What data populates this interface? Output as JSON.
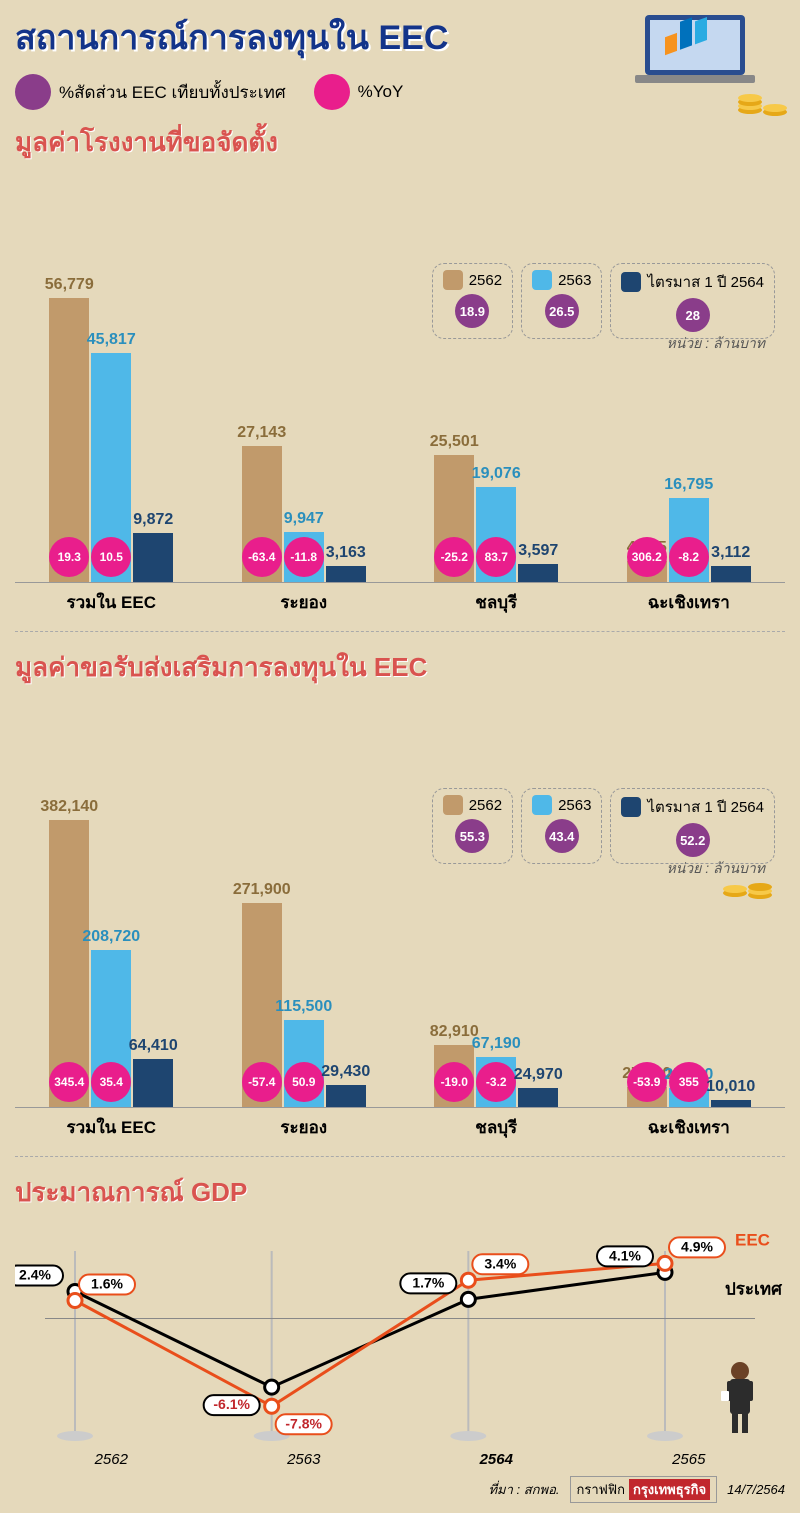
{
  "colors": {
    "bg": "#e5d9bb",
    "title": "#13348a",
    "section": "#d9534f",
    "purple": "#8a3d8a",
    "magenta": "#e91e8c",
    "bar2562": "#c19a6b",
    "bar2563": "#4fb8e8",
    "bar2564": "#1e4570",
    "eec_line": "#e94e1b",
    "country_line": "#000000"
  },
  "main_title": "สถานการณ์การลงทุนใน EEC",
  "legend_top": {
    "purple_label": "%สัดส่วน EEC เทียบทั้งประเทศ",
    "magenta_label": "%YoY"
  },
  "unit_label": "หน่วย : ล้านบาท",
  "year_legend": [
    {
      "swatch": "#c19a6b",
      "label": "2562"
    },
    {
      "swatch": "#4fb8e8",
      "label": "2563"
    },
    {
      "swatch": "#1e4570",
      "label": "ไตรมาส 1 ปี 2564"
    }
  ],
  "chart1": {
    "title": "มูลค่าโรงงานที่ขอจัดตั้ง",
    "ymax": 60000,
    "purple_badges": [
      "18.9",
      "26.5",
      "28"
    ],
    "categories": [
      "รวมใน EEC",
      "ระยอง",
      "ชลบุรี",
      "ฉะเชิงเทรา"
    ],
    "groups": [
      {
        "vals": [
          56779,
          45817,
          9872
        ],
        "labels": [
          "56,779",
          "45,817",
          "9,872"
        ],
        "yoy": [
          "19.3",
          "10.5",
          null
        ],
        "lcolors": [
          "#8a6d3b",
          "#2a8fbd",
          "#1e4570"
        ]
      },
      {
        "vals": [
          27143,
          9947,
          3163
        ],
        "labels": [
          "27,143",
          "9,947",
          "3,163"
        ],
        "yoy": [
          "-63.4",
          "-11.8",
          null
        ],
        "lcolors": [
          "#8a6d3b",
          "#2a8fbd",
          "#1e4570"
        ]
      },
      {
        "vals": [
          25501,
          19076,
          3597
        ],
        "labels": [
          "25,501",
          "19,076",
          "3,597"
        ],
        "yoy": [
          "-25.2",
          "83.7",
          null
        ],
        "lcolors": [
          "#8a6d3b",
          "#2a8fbd",
          "#1e4570"
        ]
      },
      {
        "vals": [
          4135,
          16795,
          3112
        ],
        "labels": [
          "4,135",
          "16,795",
          "3,112"
        ],
        "yoy": [
          "306.2",
          "-8.2",
          null
        ],
        "lcolors": [
          "#8a6d3b",
          "#2a8fbd",
          "#1e4570"
        ]
      }
    ]
  },
  "chart2": {
    "title": "มูลค่าขอรับส่งเสริมการลงทุนใน EEC",
    "ymax": 400000,
    "purple_badges": [
      "55.3",
      "43.4",
      "52.2"
    ],
    "categories": [
      "รวมใน EEC",
      "ระยอง",
      "ชลบุรี",
      "ฉะเชิงเทรา"
    ],
    "groups": [
      {
        "vals": [
          382140,
          208720,
          64410
        ],
        "labels": [
          "382,140",
          "208,720",
          "64,410"
        ],
        "yoy": [
          "345.4",
          "35.4",
          null
        ],
        "lcolors": [
          "#8a6d3b",
          "#2a8fbd",
          "#1e4570"
        ]
      },
      {
        "vals": [
          271900,
          115500,
          29430
        ],
        "labels": [
          "271,900",
          "115,500",
          "29,430"
        ],
        "yoy": [
          "-57.4",
          "50.9",
          null
        ],
        "lcolors": [
          "#8a6d3b",
          "#2a8fbd",
          "#1e4570"
        ]
      },
      {
        "vals": [
          82910,
          67190,
          24970
        ],
        "labels": [
          "82,910",
          "67,190",
          "24,970"
        ],
        "yoy": [
          "-19.0",
          "-3.2",
          null
        ],
        "lcolors": [
          "#8a6d3b",
          "#2a8fbd",
          "#1e4570"
        ]
      },
      {
        "vals": [
          27330,
          25660,
          10010
        ],
        "labels": [
          "27,330",
          "25,660",
          "10,010"
        ],
        "yoy": [
          "-53.9",
          "355",
          null
        ],
        "lcolors": [
          "#8a6d3b",
          "#2a8fbd",
          "#1e4570"
        ]
      }
    ]
  },
  "gdp": {
    "title": "ประมาณการณ์ GDP",
    "years": [
      "2562",
      "2563",
      "2564",
      "2565"
    ],
    "eec_label": "EEC",
    "country_label": "ประเทศ",
    "eec": [
      1.6,
      -7.8,
      3.4,
      4.9
    ],
    "country": [
      2.4,
      -6.1,
      1.7,
      4.1
    ],
    "eec_str": [
      "1.6%",
      "-7.8%",
      "3.4%",
      "4.9%"
    ],
    "country_str": [
      "2.4%",
      "-6.1%",
      "1.7%",
      "4.1%"
    ],
    "ymin": -10,
    "ymax": 6
  },
  "footer": {
    "source": "ที่มา : สกพอ.",
    "logo_gray": "กราฟฟิก",
    "logo_red": "กรุงเทพธุรกิจ",
    "date": "14/7/2564"
  }
}
